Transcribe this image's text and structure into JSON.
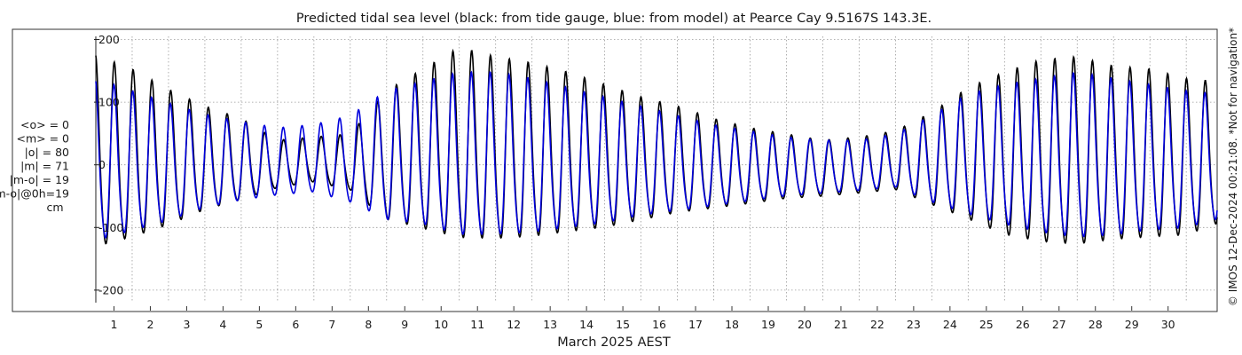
{
  "chart_data": {
    "type": "line",
    "title": "Predicted tidal sea level (black: from tide gauge, blue: from model) at Pearce Cay 9.5167S 143.3E.",
    "xlabel": "March 2025 AEST",
    "ylabel": "",
    "x_ticks": [
      "1",
      "2",
      "3",
      "4",
      "5",
      "6",
      "7",
      "8",
      "9",
      "10",
      "11",
      "12",
      "13",
      "14",
      "15",
      "16",
      "17",
      "18",
      "19",
      "20",
      "21",
      "22",
      "23",
      "24",
      "25",
      "26",
      "27",
      "28",
      "29",
      "30"
    ],
    "x_range_days": [
      0,
      30.85
    ],
    "ylim": [
      -220,
      205
    ],
    "y_ticks": [
      200,
      100,
      0,
      -100,
      -200
    ],
    "grid": true,
    "stats": [
      "<o> = 0",
      "<m> = 0",
      "|o| = 80",
      "|m| = 71",
      "|m-o| = 19",
      "|m-o|@0h=19",
      "cm"
    ],
    "side_note": "© IMOS 12-Dec-2024 00:21:08. *Not for navigation*",
    "series": [
      {
        "name": "black",
        "color": "#000000",
        "x": [
          0.0,
          1.0,
          2.0,
          3.0,
          4.0,
          5.0,
          6.0,
          7.0,
          8.0,
          9.0,
          10.0,
          11.0,
          12.0,
          13.0,
          14.0,
          15.0,
          16.0,
          17.0,
          18.0,
          19.0,
          20.0,
          21.0,
          22.0,
          23.0,
          24.0,
          25.0,
          26.0,
          27.0,
          28.0,
          29.0,
          30.0,
          30.8
        ],
        "y_max": [
          178,
          155,
          122,
          95,
          75,
          40,
          45,
          50,
          120,
          155,
          190,
          175,
          165,
          150,
          130,
          110,
          95,
          75,
          60,
          50,
          40,
          45,
          55,
          85,
          125,
          150,
          170,
          175,
          160,
          155,
          140,
          135
        ],
        "y_min": [
          -165,
          -145,
          -120,
          -90,
          -70,
          -45,
          -35,
          -50,
          -110,
          -130,
          -150,
          -150,
          -145,
          -135,
          -125,
          -110,
          -95,
          -85,
          -75,
          -65,
          -60,
          -55,
          -50,
          -80,
          -110,
          -140,
          -155,
          -160,
          -150,
          -145,
          -140,
          -120
        ]
      },
      {
        "name": "blue",
        "color": "#0000dd",
        "x": [
          0.0,
          1.0,
          2.0,
          3.0,
          4.0,
          5.0,
          6.0,
          7.0,
          8.0,
          9.0,
          10.0,
          11.0,
          12.0,
          13.0,
          14.0,
          15.0,
          16.0,
          17.0,
          18.0,
          19.0,
          20.0,
          21.0,
          22.0,
          23.0,
          24.0,
          25.0,
          26.0,
          27.0,
          28.0,
          29.0,
          30.0,
          30.8
        ],
        "y_max": [
          140,
          120,
          100,
          82,
          70,
          60,
          65,
          80,
          120,
          135,
          150,
          150,
          140,
          125,
          110,
          95,
          80,
          65,
          55,
          45,
          40,
          40,
          50,
          80,
          115,
          130,
          140,
          150,
          140,
          130,
          120,
          115
        ],
        "y_min": [
          -150,
          -130,
          -110,
          -85,
          -70,
          -60,
          -55,
          -75,
          -110,
          -120,
          -140,
          -140,
          -135,
          -125,
          -115,
          -100,
          -90,
          -80,
          -70,
          -60,
          -55,
          -50,
          -45,
          -75,
          -100,
          -120,
          -135,
          -145,
          -140,
          -130,
          -125,
          -110
        ]
      }
    ]
  }
}
